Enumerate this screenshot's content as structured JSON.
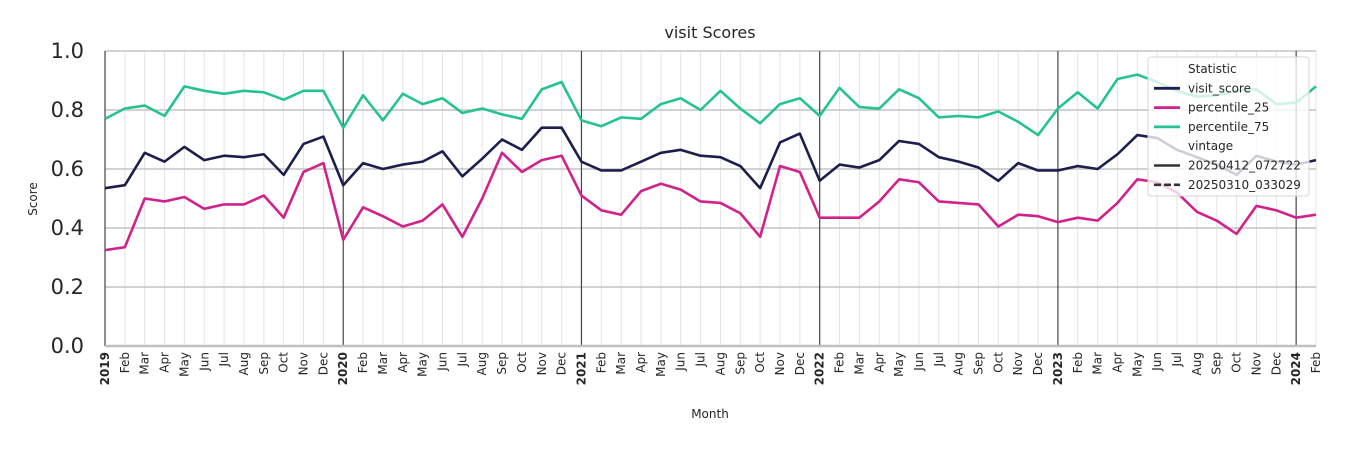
{
  "chart_data": {
    "type": "line",
    "title": "visit Scores",
    "xlabel": "Month",
    "ylabel": "Score",
    "ylim": [
      0.0,
      1.0
    ],
    "yticks": [
      "0.0",
      "0.2",
      "0.4",
      "0.6",
      "0.8",
      "1.0"
    ],
    "x_labels": [
      "2019",
      "Feb",
      "Mar",
      "Apr",
      "May",
      "Jun",
      "Jul",
      "Aug",
      "Sep",
      "Oct",
      "Nov",
      "Dec",
      "2020",
      "Feb",
      "Mar",
      "Apr",
      "May",
      "Jun",
      "Jul",
      "Aug",
      "Sep",
      "Oct",
      "Nov",
      "Dec",
      "2021",
      "Feb",
      "Mar",
      "Apr",
      "May",
      "Jun",
      "Jul",
      "Aug",
      "Sep",
      "Oct",
      "Nov",
      "Dec",
      "2022",
      "Feb",
      "Mar",
      "Apr",
      "May",
      "Jun",
      "Jul",
      "Aug",
      "Sep",
      "Oct",
      "Nov",
      "Dec",
      "2023",
      "Feb",
      "Mar",
      "Apr",
      "May",
      "Jun",
      "Jul",
      "Aug",
      "Sep",
      "Oct",
      "Nov",
      "Dec",
      "2024",
      "Feb"
    ],
    "year_labels": [
      "2019",
      "2020",
      "2021",
      "2022",
      "2023",
      "2024"
    ],
    "grid": true,
    "legend": {
      "placement": "top-right",
      "title_statistic": "Statistic",
      "title_vintage": "vintage",
      "vintages": [
        "20250412_072722",
        "20250310_033029"
      ]
    },
    "series": [
      {
        "name": "visit_score",
        "color": "#1c1f4e",
        "values": [
          0.535,
          0.545,
          0.655,
          0.625,
          0.675,
          0.63,
          0.645,
          0.64,
          0.65,
          0.58,
          0.685,
          0.71,
          0.545,
          0.62,
          0.6,
          0.615,
          0.625,
          0.66,
          0.575,
          0.635,
          0.7,
          0.665,
          0.74,
          0.74,
          0.625,
          0.595,
          0.595,
          0.625,
          0.655,
          0.665,
          0.645,
          0.64,
          0.61,
          0.535,
          0.69,
          0.72,
          0.56,
          0.615,
          0.605,
          0.63,
          0.695,
          0.685,
          0.64,
          0.625,
          0.605,
          0.56,
          0.62,
          0.595,
          0.595,
          0.61,
          0.6,
          0.65,
          0.715,
          0.705,
          0.665,
          0.64,
          0.615,
          0.58,
          0.645,
          0.625,
          0.615,
          0.63
        ]
      },
      {
        "name": "percentile_25",
        "color": "#d1228c",
        "values": [
          0.325,
          0.335,
          0.5,
          0.49,
          0.505,
          0.465,
          0.48,
          0.48,
          0.51,
          0.435,
          0.59,
          0.62,
          0.36,
          0.47,
          0.44,
          0.405,
          0.425,
          0.48,
          0.37,
          0.5,
          0.655,
          0.59,
          0.63,
          0.645,
          0.51,
          0.46,
          0.445,
          0.525,
          0.55,
          0.53,
          0.49,
          0.485,
          0.45,
          0.37,
          0.61,
          0.59,
          0.435,
          0.435,
          0.435,
          0.49,
          0.565,
          0.555,
          0.49,
          0.485,
          0.48,
          0.405,
          0.445,
          0.44,
          0.42,
          0.435,
          0.425,
          0.485,
          0.565,
          0.555,
          0.52,
          0.455,
          0.425,
          0.38,
          0.475,
          0.46,
          0.435,
          0.445
        ]
      },
      {
        "name": "percentile_75",
        "color": "#26c48c",
        "values": [
          0.77,
          0.805,
          0.815,
          0.78,
          0.88,
          0.865,
          0.855,
          0.865,
          0.86,
          0.835,
          0.865,
          0.865,
          0.74,
          0.85,
          0.765,
          0.855,
          0.82,
          0.84,
          0.79,
          0.805,
          0.785,
          0.77,
          0.87,
          0.895,
          0.765,
          0.745,
          0.775,
          0.77,
          0.82,
          0.84,
          0.8,
          0.865,
          0.805,
          0.755,
          0.82,
          0.84,
          0.78,
          0.875,
          0.81,
          0.805,
          0.87,
          0.84,
          0.775,
          0.78,
          0.775,
          0.795,
          0.76,
          0.715,
          0.805,
          0.86,
          0.805,
          0.905,
          0.92,
          0.895,
          0.865,
          0.845,
          0.85,
          0.865,
          0.87,
          0.82,
          0.825,
          0.88
        ]
      }
    ]
  }
}
